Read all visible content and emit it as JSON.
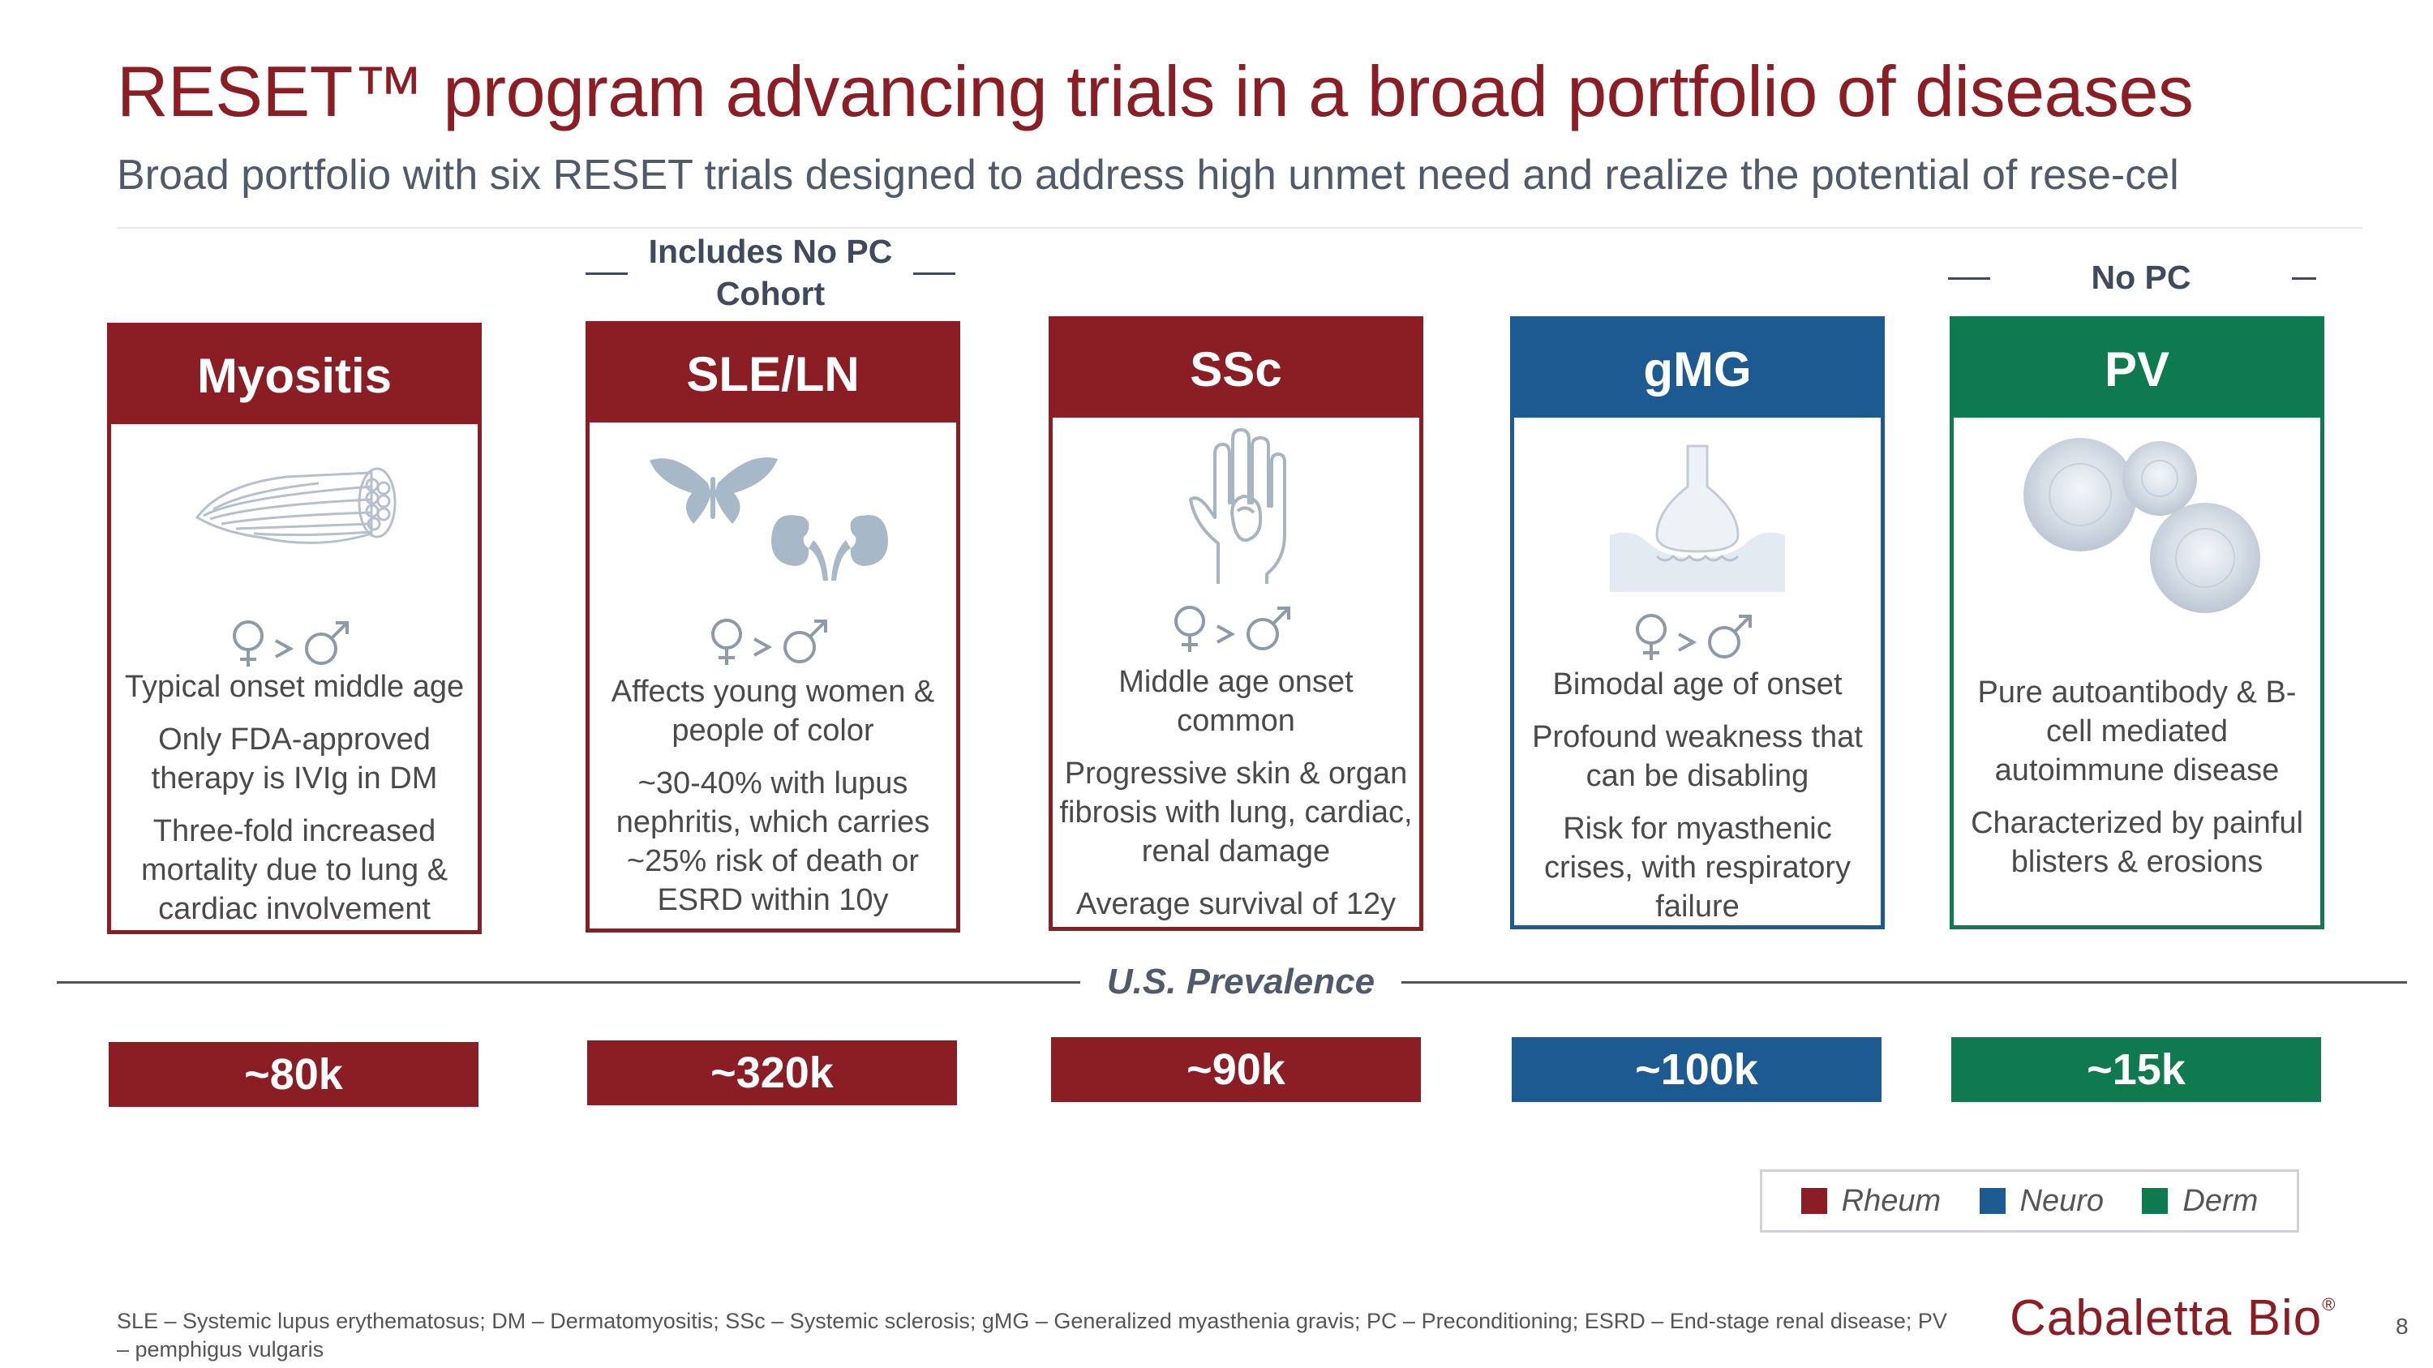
{
  "title": "RESET™ program advancing trials in a broad portfolio of diseases",
  "subtitle": "Broad portfolio with six RESET trials designed to address high unmet need and realize the potential of rese-cel",
  "notes": {
    "sle": {
      "line1": "Includes No PC",
      "line2": "Cohort"
    },
    "pv": "No PC"
  },
  "colors": {
    "rheum": "#8B1E24",
    "neuro": "#1D5A91",
    "derm": "#0F7A4F"
  },
  "diseases": [
    {
      "name": "Myositis",
      "category": "rheum",
      "sex_ratio": "♀>♂",
      "bullets": [
        "Typical onset middle age",
        "Only FDA-approved therapy is IVIg in DM",
        "Three-fold increased mortality due to lung & cardiac involvement"
      ],
      "prevalence": "~80k",
      "icon": "muscle-icon"
    },
    {
      "name": "SLE/LN",
      "category": "rheum",
      "sex_ratio": "♀>♂",
      "bullets": [
        "Affects young women & people of color",
        "~30-40% with lupus nephritis, which carries ~25% risk of death or ESRD within 10y"
      ],
      "prevalence": "~320k",
      "icon": "butterfly-kidney-icon"
    },
    {
      "name": "SSc",
      "category": "rheum",
      "sex_ratio": "♀>♂",
      "bullets": [
        "Middle age onset common",
        "Progressive skin & organ fibrosis with lung, cardiac, renal damage",
        "Average survival of 12y"
      ],
      "prevalence": "~90k",
      "icon": "hand-icon"
    },
    {
      "name": "gMG",
      "category": "neuro",
      "sex_ratio": "♀>♂",
      "bullets": [
        "Bimodal age of onset",
        "Profound weakness that can be disabling",
        "Risk for myasthenic crises, with respiratory failure"
      ],
      "prevalence": "~100k",
      "icon": "synapse-icon"
    },
    {
      "name": "PV",
      "category": "derm",
      "bullets": [
        "Pure autoantibody & B-cell mediated autoimmune disease",
        "Characterized by painful blisters & erosions"
      ],
      "prevalence": "~15k",
      "icon": "cells-icon"
    }
  ],
  "prevalence_label": "U.S. Prevalence",
  "legend": [
    {
      "label": "Rheum",
      "color": "#8B1E24"
    },
    {
      "label": "Neuro",
      "color": "#1D5A91"
    },
    {
      "label": "Derm",
      "color": "#0F7A4F"
    }
  ],
  "footnote": "SLE – Systemic lupus erythematosus; DM – Dermatomyositis; SSc – Systemic sclerosis; gMG – Generalized myasthenia gravis; PC – Preconditioning; ESRD – End-stage renal disease; PV – pemphigus vulgaris",
  "logo": {
    "text": "Cabaletta Bio",
    "mark": "®"
  },
  "page_number": "8"
}
